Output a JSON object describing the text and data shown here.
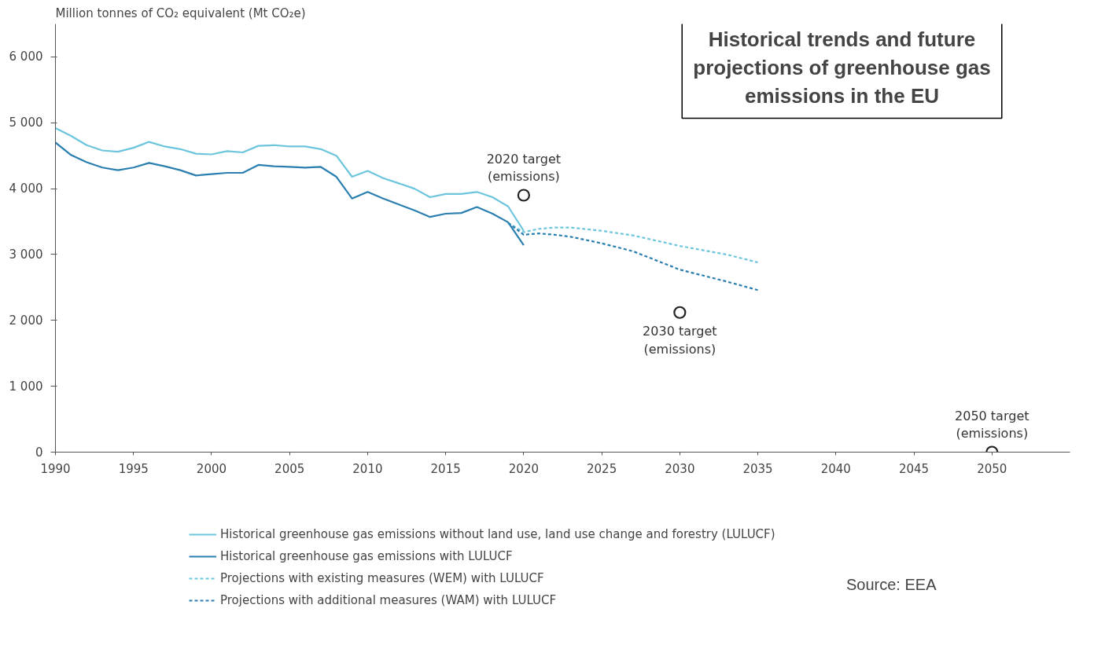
{
  "chart_data": {
    "type": "line",
    "title": "Historical trends and future\nprojections of greenhouse gas\nemissions in the EU",
    "ylabel": "Million tonnes of CO₂ equivalent (Mt CO₂e)",
    "xlim": [
      1990,
      2055
    ],
    "xticks": [
      1990,
      1995,
      2000,
      2005,
      2010,
      2015,
      2020,
      2025,
      2030,
      2035,
      2040,
      2045,
      2050
    ],
    "ylim": [
      0,
      6500
    ],
    "yticks": [
      {
        "value": 0,
        "label": "0"
      },
      {
        "value": 1000,
        "label": "1 000"
      },
      {
        "value": 2000,
        "label": "2 000"
      },
      {
        "value": 3000,
        "label": "3 000"
      },
      {
        "value": 4000,
        "label": "4 000"
      },
      {
        "value": 5000,
        "label": "5 000"
      },
      {
        "value": 6000,
        "label": "6 000"
      }
    ],
    "grid": false,
    "legend": "bottom",
    "series": [
      {
        "name": "Historical greenhouse gas emissions without land use, land use change and forestry (LULUCF)",
        "color": "#6cc5dc",
        "line_style": "solid",
        "x": [
          1990,
          1991,
          1992,
          1993,
          1994,
          1995,
          1996,
          1997,
          1998,
          1999,
          2000,
          2001,
          2002,
          2003,
          2004,
          2005,
          2006,
          2007,
          2008,
          2009,
          2010,
          2011,
          2012,
          2013,
          2014,
          2015,
          2016,
          2017,
          2018,
          2019,
          2020
        ],
        "values": [
          4920,
          4800,
          4660,
          4580,
          4560,
          4620,
          4710,
          4640,
          4600,
          4530,
          4520,
          4570,
          4550,
          4650,
          4660,
          4640,
          4640,
          4600,
          4500,
          4180,
          4270,
          4160,
          4080,
          4000,
          3870,
          3920,
          3920,
          3950,
          3870,
          3730,
          3360
        ]
      },
      {
        "name": "Historical greenhouse gas emissions with LULUCF",
        "color": "#2a7fb0",
        "line_style": "solid",
        "x": [
          1990,
          1991,
          1992,
          1993,
          1994,
          1995,
          1996,
          1997,
          1998,
          1999,
          2000,
          2001,
          2002,
          2003,
          2004,
          2005,
          2006,
          2007,
          2008,
          2009,
          2010,
          2011,
          2012,
          2013,
          2014,
          2015,
          2016,
          2017,
          2018,
          2019,
          2020
        ],
        "values": [
          4700,
          4510,
          4400,
          4320,
          4280,
          4320,
          4390,
          4340,
          4280,
          4200,
          4220,
          4240,
          4240,
          4360,
          4340,
          4330,
          4320,
          4330,
          4180,
          3850,
          3950,
          3850,
          3760,
          3670,
          3570,
          3620,
          3630,
          3720,
          3620,
          3490,
          3140
        ]
      },
      {
        "name": "Projections with existing measures (WEM) with LULUCF",
        "color": "#6cc5dc",
        "line_style": "dashed",
        "x": [
          2019,
          2020,
          2021,
          2022,
          2023,
          2025,
          2027,
          2030,
          2033,
          2035
        ],
        "values": [
          3480,
          3340,
          3390,
          3410,
          3410,
          3360,
          3290,
          3130,
          3000,
          2880
        ]
      },
      {
        "name": "Projections with additional measures (WAM) with LULUCF",
        "color": "#2a7fb0",
        "line_style": "dashed",
        "x": [
          2019,
          2020,
          2021,
          2022,
          2023,
          2025,
          2027,
          2030,
          2033,
          2035
        ],
        "values": [
          3480,
          3300,
          3320,
          3300,
          3270,
          3170,
          3050,
          2770,
          2590,
          2460
        ]
      },
      {
        "type": "scatter",
        "marker": "circle",
        "color": "#222222",
        "x": [
          2020,
          2030,
          2050
        ],
        "values": [
          3900,
          2120,
          0
        ]
      }
    ],
    "annotations": [
      {
        "text": "2020 target\n(emissions)",
        "x": 2020,
        "y": 3900
      },
      {
        "text": "2030 target\n(emissions)",
        "x": 2030,
        "y": 2120
      },
      {
        "text": "2050 target\n(emissions)",
        "x": 2050,
        "y": 0
      },
      "Source: EEA"
    ]
  }
}
